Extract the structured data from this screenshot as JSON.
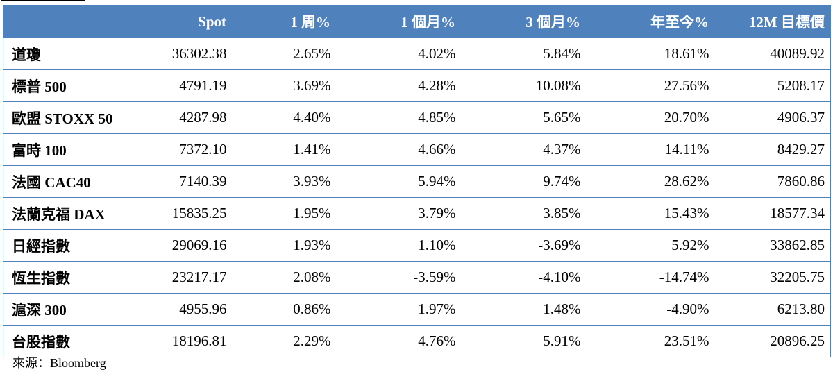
{
  "table": {
    "headers": [
      "",
      "Spot",
      "1 周%",
      "1 個月%",
      "3 個月%",
      "年至今%",
      "12M 目標價"
    ],
    "rows": [
      {
        "name": "道瓊",
        "spot": "36302.38",
        "w1": "2.65%",
        "m1": "4.02%",
        "m3": "5.84%",
        "ytd": "18.61%",
        "target": "40089.92"
      },
      {
        "name": "標普 500",
        "spot": "4791.19",
        "w1": "3.69%",
        "m1": "4.28%",
        "m3": "10.08%",
        "ytd": "27.56%",
        "target": "5208.17"
      },
      {
        "name": "歐盟 STOXX 50",
        "spot": "4287.98",
        "w1": "4.40%",
        "m1": "4.85%",
        "m3": "5.65%",
        "ytd": "20.70%",
        "target": "4906.37"
      },
      {
        "name": "富時 100",
        "spot": "7372.10",
        "w1": "1.41%",
        "m1": "4.66%",
        "m3": "4.37%",
        "ytd": "14.11%",
        "target": "8429.27"
      },
      {
        "name": "法國 CAC40",
        "spot": "7140.39",
        "w1": "3.93%",
        "m1": "5.94%",
        "m3": "9.74%",
        "ytd": "28.62%",
        "target": "7860.86"
      },
      {
        "name": "法蘭克福 DAX",
        "spot": "15835.25",
        "w1": "1.95%",
        "m1": "3.79%",
        "m3": "3.85%",
        "ytd": "15.43%",
        "target": "18577.34"
      },
      {
        "name": "日經指數",
        "spot": "29069.16",
        "w1": "1.93%",
        "m1": "1.10%",
        "m3": "-3.69%",
        "ytd": "5.92%",
        "target": "33862.85"
      },
      {
        "name": "恆生指數",
        "spot": "23217.17",
        "w1": "2.08%",
        "m1": "-3.59%",
        "m3": "-4.10%",
        "ytd": "-14.74%",
        "target": "32205.75"
      },
      {
        "name": "滬深 300",
        "spot": "4955.96",
        "w1": "0.86%",
        "m1": "1.97%",
        "m3": "1.48%",
        "ytd": "-4.90%",
        "target": "6213.80"
      },
      {
        "name": "台股指數",
        "spot": "18196.81",
        "w1": "2.29%",
        "m1": "4.76%",
        "m3": "5.91%",
        "ytd": "23.51%",
        "target": "20896.25"
      }
    ]
  },
  "source": "來源：Bloomberg",
  "colors": {
    "header_bg": "#4f81bd",
    "header_text": "#ffffff",
    "border": "#4f81bd"
  }
}
